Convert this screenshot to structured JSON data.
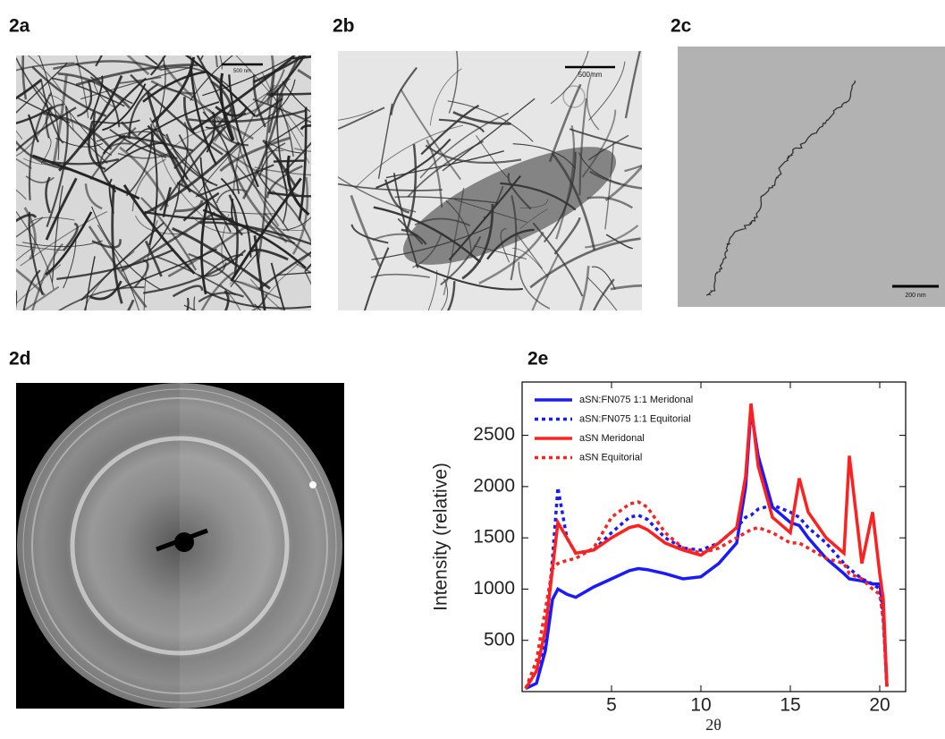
{
  "panels": {
    "a": {
      "label": "2a",
      "scale_bar": "500 nm"
    },
    "b": {
      "label": "2b",
      "scale_bar": "500 nm"
    },
    "c": {
      "label": "2c",
      "scale_bar": "200 nm"
    },
    "d": {
      "label": "2d"
    },
    "e": {
      "label": "2e"
    }
  },
  "chart_data": {
    "type": "line",
    "x_label": "2θ",
    "y_label": "Intensity (relative)",
    "x": [
      0.2,
      0.8,
      1.3,
      1.7,
      2,
      2.5,
      3,
      4,
      5,
      6,
      6.5,
      7,
      8,
      9,
      10,
      11,
      12,
      12.5,
      12.8,
      13.2,
      14,
      15,
      15.5,
      16,
      17,
      18,
      18.3,
      19,
      19.6,
      20,
      20.2,
      20.4
    ],
    "xlim": [
      0,
      21.45
    ],
    "ylim": [
      0,
      3020
    ],
    "xticks": [
      5,
      10,
      15,
      20
    ],
    "yticks": [
      500,
      1000,
      1500,
      2000,
      2500
    ],
    "legend": "upper left",
    "series": [
      {
        "name": "aSN:FN075 1:1 Meridonal",
        "color": "#1a1aff",
        "line_style": "solid",
        "values": [
          30,
          80,
          400,
          900,
          1000,
          950,
          920,
          1020,
          1100,
          1180,
          1200,
          1190,
          1150,
          1100,
          1120,
          1250,
          1450,
          2000,
          2750,
          2300,
          1800,
          1650,
          1620,
          1500,
          1300,
          1150,
          1100,
          1080,
          1050,
          1050,
          800,
          50
        ]
      },
      {
        "name": "aSN:FN075 1:1 Equitorial",
        "color": "#1a1aff",
        "line_style": "dotted",
        "values": [
          30,
          200,
          500,
          1300,
          1990,
          1500,
          1350,
          1380,
          1550,
          1700,
          1720,
          1680,
          1500,
          1400,
          1380,
          1450,
          1600,
          1700,
          1720,
          1780,
          1820,
          1750,
          1700,
          1600,
          1450,
          1250,
          1200,
          1100,
          1050,
          1000,
          700,
          50
        ]
      },
      {
        "name": "aSN Meridonal",
        "color": "#ff2020",
        "line_style": "solid",
        "values": [
          30,
          200,
          600,
          1200,
          1650,
          1500,
          1350,
          1380,
          1500,
          1600,
          1620,
          1580,
          1450,
          1380,
          1330,
          1450,
          1600,
          2100,
          2810,
          2200,
          1700,
          1550,
          2080,
          1750,
          1500,
          1350,
          2300,
          1250,
          1750,
          1150,
          900,
          50
        ]
      },
      {
        "name": "aSN Equitorial",
        "color": "#ff2020",
        "line_style": "dotted",
        "values": [
          30,
          300,
          800,
          1200,
          1250,
          1280,
          1300,
          1400,
          1700,
          1830,
          1850,
          1800,
          1550,
          1400,
          1350,
          1400,
          1500,
          1550,
          1580,
          1600,
          1550,
          1450,
          1450,
          1400,
          1300,
          1250,
          1150,
          1100,
          1000,
          950,
          700,
          50
        ]
      }
    ]
  }
}
